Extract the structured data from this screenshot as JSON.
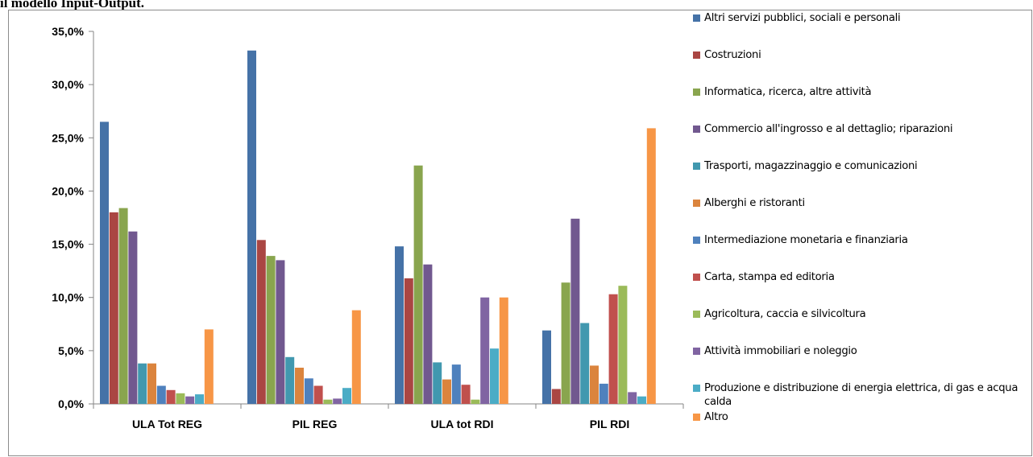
{
  "heading": "il modello Input-Output.",
  "chart_data": {
    "type": "bar",
    "categories": [
      "ULA Tot REG",
      "PIL REG",
      "ULA tot RDI",
      "PIL RDI"
    ],
    "ylim": [
      0,
      35
    ],
    "y_ticks": [
      "0,0%",
      "5,0%",
      "10,0%",
      "15,0%",
      "20,0%",
      "25,0%",
      "30,0%",
      "35,0%"
    ],
    "grid": false,
    "legend_position": "right",
    "series": [
      {
        "name": "Altri servizi pubblici, sociali e personali",
        "color": "#4572A7",
        "values": [
          26.5,
          33.2,
          14.8,
          6.9
        ]
      },
      {
        "name": "Costruzioni",
        "color": "#AA4643",
        "values": [
          18.0,
          15.4,
          11.8,
          1.4
        ]
      },
      {
        "name": "Informatica, ricerca, altre attività",
        "color": "#89A54E",
        "values": [
          18.4,
          13.9,
          22.4,
          11.4
        ]
      },
      {
        "name": "Commercio all'ingrosso e al dettaglio; riparazioni",
        "color": "#71588F",
        "values": [
          16.2,
          13.5,
          13.1,
          17.4
        ]
      },
      {
        "name": "Trasporti, magazzinaggio e comunicazioni",
        "color": "#4198AF",
        "values": [
          3.8,
          4.4,
          3.9,
          7.6
        ]
      },
      {
        "name": "Alberghi e ristoranti",
        "color": "#DB843D",
        "values": [
          3.8,
          3.4,
          2.3,
          3.6
        ]
      },
      {
        "name": "Intermediazione monetaria e finanziaria",
        "color": "#4F81BD",
        "values": [
          1.7,
          2.4,
          3.7,
          1.9
        ]
      },
      {
        "name": "Carta, stampa ed editoria",
        "color": "#C0504D",
        "values": [
          1.3,
          1.7,
          1.8,
          10.3
        ]
      },
      {
        "name": "Agricoltura, caccia e silvicoltura",
        "color": "#9BBB59",
        "values": [
          1.0,
          0.4,
          0.4,
          11.1
        ]
      },
      {
        "name": "Attività immobiliari e noleggio",
        "color": "#8064A2",
        "values": [
          0.7,
          0.5,
          10.0,
          1.1
        ]
      },
      {
        "name": "Produzione e distribuzione di energia elettrica, di gas e acqua calda",
        "color": "#4BACC6",
        "values": [
          0.9,
          1.5,
          5.2,
          0.7
        ]
      },
      {
        "name": "Altro",
        "color": "#F79646",
        "values": [
          7.0,
          8.8,
          10.0,
          25.9
        ]
      }
    ]
  }
}
